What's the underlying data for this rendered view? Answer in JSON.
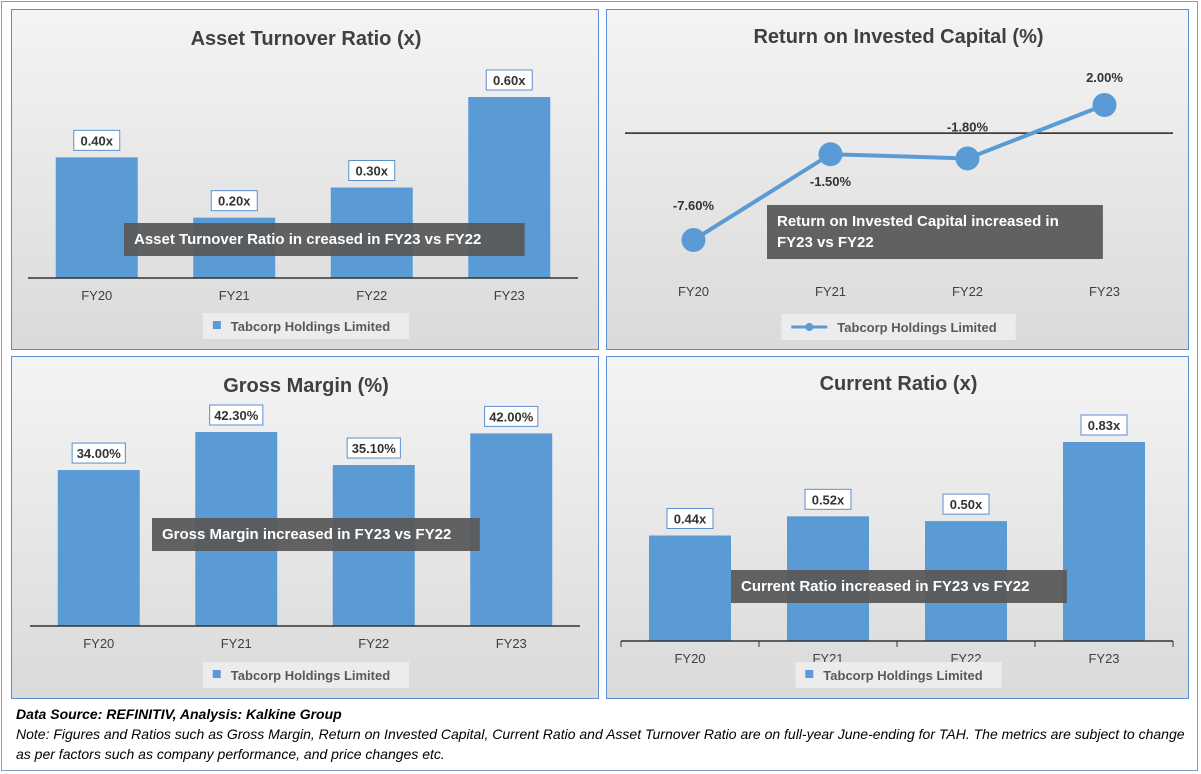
{
  "charts": [
    {
      "id": "asset_turnover",
      "title": "Asset Turnover Ratio (x)",
      "annotation": [
        "Asset Turnover Ratio in creased in FY23 vs FY22"
      ],
      "legend": "Tabcorp Holdings Limited"
    },
    {
      "id": "roic",
      "title": "Return on Invested Capital (%)",
      "annotation": [
        "Return on Invested Capital increased in",
        "FY23 vs FY22"
      ],
      "legend": "Tabcorp Holdings Limited"
    },
    {
      "id": "gross_margin",
      "title": "Gross Margin (%)",
      "annotation": [
        "Gross Margin increased in FY23 vs FY22"
      ],
      "legend": "Tabcorp Holdings Limited"
    },
    {
      "id": "current_ratio",
      "title": "Current Ratio (x)",
      "annotation": [
        "Current Ratio increased in FY23 vs FY22"
      ],
      "legend": "Tabcorp Holdings Limited"
    }
  ],
  "chart_data": [
    {
      "type": "bar",
      "title": "Asset Turnover Ratio (x)",
      "categories": [
        "FY20",
        "FY21",
        "FY22",
        "FY23"
      ],
      "series": [
        {
          "name": "Tabcorp Holdings Limited",
          "values": [
            0.4,
            0.2,
            0.3,
            0.6
          ]
        }
      ],
      "data_labels": [
        "0.40x",
        "0.20x",
        "0.30x",
        "0.60x"
      ],
      "ylim": [
        0,
        0.6
      ],
      "legend_position": "bottom",
      "grid": false,
      "color": "#5b9bd5"
    },
    {
      "type": "line",
      "title": "Return on Invested Capital (%)",
      "categories": [
        "FY20",
        "FY21",
        "FY22",
        "FY23"
      ],
      "series": [
        {
          "name": "Tabcorp Holdings Limited",
          "values": [
            -7.6,
            -1.5,
            -1.8,
            2.0
          ]
        }
      ],
      "data_labels": [
        "-7.60%",
        "-1.50%",
        "-1.80%",
        "2.00%"
      ],
      "ylim": [
        -7.6,
        2.0
      ],
      "legend_position": "bottom",
      "grid": false,
      "color": "#5b9bd5"
    },
    {
      "type": "bar",
      "title": "Gross Margin (%)",
      "categories": [
        "FY20",
        "FY21",
        "FY22",
        "FY23"
      ],
      "series": [
        {
          "name": "Tabcorp Holdings Limited",
          "values": [
            34.0,
            42.3,
            35.1,
            42.0
          ]
        }
      ],
      "data_labels": [
        "34.00%",
        "42.30%",
        "35.10%",
        "42.00%"
      ],
      "ylim": [
        0,
        42.3
      ],
      "legend_position": "bottom",
      "grid": false,
      "color": "#5b9bd5"
    },
    {
      "type": "bar",
      "title": "Current Ratio (x)",
      "categories": [
        "FY20",
        "FY21",
        "FY22",
        "FY23"
      ],
      "series": [
        {
          "name": "Tabcorp Holdings Limited",
          "values": [
            0.44,
            0.52,
            0.5,
            0.83
          ]
        }
      ],
      "data_labels": [
        "0.44x",
        "0.52x",
        "0.50x",
        "0.83x"
      ],
      "ylim": [
        0,
        0.83
      ],
      "legend_position": "bottom",
      "grid": false,
      "color": "#5b9bd5"
    }
  ],
  "footer": {
    "source": "Data Source: REFINITIV, Analysis: Kalkine Group",
    "note": "Note: Figures and Ratios such as Gross Margin, Return on Invested Capital, Current Ratio and Asset Turnover Ratio are on full-year June-ending for TAH. The metrics are subject to change as per factors such as company performance, and price changes etc."
  }
}
